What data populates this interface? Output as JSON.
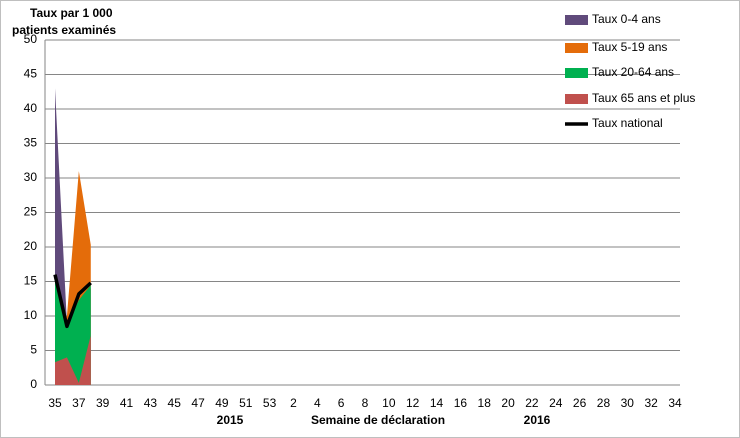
{
  "chart_data": {
    "type": "area",
    "title": [
      "Taux par 1 000",
      "patients examinés"
    ],
    "x_label": "Semaine de déclaration",
    "year_labels": [
      "2015",
      "2016"
    ],
    "categories": [
      "35",
      null,
      "37",
      null,
      "39",
      null,
      "41",
      null,
      "43",
      null,
      "45",
      null,
      "47",
      null,
      "49",
      null,
      "51",
      null,
      "53",
      null,
      "2",
      null,
      "4",
      null,
      "6",
      null,
      "8",
      null,
      "10",
      null,
      "12",
      null,
      "14",
      null,
      "16",
      null,
      "18",
      null,
      "20",
      null,
      "22",
      null,
      "24",
      null,
      "26",
      null,
      "28",
      null,
      "30",
      null,
      "32",
      null,
      "34"
    ],
    "ylim": [
      0,
      50
    ],
    "yticks": [
      0,
      5,
      10,
      15,
      20,
      25,
      30,
      35,
      40,
      45,
      50
    ],
    "grid": true,
    "legend": "right",
    "series": [
      {
        "name": "Taux 0-4 ans",
        "color": "#604a7b",
        "values": [
          43,
          9,
          12,
          14,
          null,
          null,
          null,
          null,
          null,
          null,
          null,
          null,
          null,
          null,
          null,
          null,
          null,
          null,
          null,
          null,
          null,
          null,
          null,
          null,
          null,
          null,
          null,
          null,
          null,
          null,
          null,
          null,
          null,
          null,
          null,
          null,
          null,
          null,
          null,
          null,
          null,
          null,
          null,
          null,
          null,
          null,
          null,
          null,
          null,
          null,
          null,
          null,
          null
        ]
      },
      {
        "name": "Taux 5-19 ans",
        "color": "#e46c0a",
        "values": [
          10,
          10,
          31,
          20.3,
          null,
          null,
          null,
          null,
          null,
          null,
          null,
          null,
          null,
          null,
          null,
          null,
          null,
          null,
          null,
          null,
          null,
          null,
          null,
          null,
          null,
          null,
          null,
          null,
          null,
          null,
          null,
          null,
          null,
          null,
          null,
          null,
          null,
          null,
          null,
          null,
          null,
          null,
          null,
          null,
          null,
          null,
          null,
          null,
          null,
          null,
          null,
          null,
          null
        ]
      },
      {
        "name": "Taux 20-64 ans",
        "color": "#00b050",
        "values": [
          15.2,
          8.7,
          12.3,
          14.5,
          null,
          null,
          null,
          null,
          null,
          null,
          null,
          null,
          null,
          null,
          null,
          null,
          null,
          null,
          null,
          null,
          null,
          null,
          null,
          null,
          null,
          null,
          null,
          null,
          null,
          null,
          null,
          null,
          null,
          null,
          null,
          null,
          null,
          null,
          null,
          null,
          null,
          null,
          null,
          null,
          null,
          null,
          null,
          null,
          null,
          null,
          null,
          null,
          null
        ]
      },
      {
        "name": "Taux 65 ans et plus",
        "color": "#c0504d",
        "values": [
          3.3,
          4,
          0.3,
          7.2,
          null,
          null,
          null,
          null,
          null,
          null,
          null,
          null,
          null,
          null,
          null,
          null,
          null,
          null,
          null,
          null,
          null,
          null,
          null,
          null,
          null,
          null,
          null,
          null,
          null,
          null,
          null,
          null,
          null,
          null,
          null,
          null,
          null,
          null,
          null,
          null,
          null,
          null,
          null,
          null,
          null,
          null,
          null,
          null,
          null,
          null,
          null,
          null,
          null
        ]
      },
      {
        "name": "Taux national",
        "color": "#000000",
        "type": "line",
        "values": [
          16,
          8.5,
          13.2,
          14.8,
          null,
          null,
          null,
          null,
          null,
          null,
          null,
          null,
          null,
          null,
          null,
          null,
          null,
          null,
          null,
          null,
          null,
          null,
          null,
          null,
          null,
          null,
          null,
          null,
          null,
          null,
          null,
          null,
          null,
          null,
          null,
          null,
          null,
          null,
          null,
          null,
          null,
          null,
          null,
          null,
          null,
          null,
          null,
          null,
          null,
          null,
          null,
          null,
          null
        ]
      }
    ]
  }
}
